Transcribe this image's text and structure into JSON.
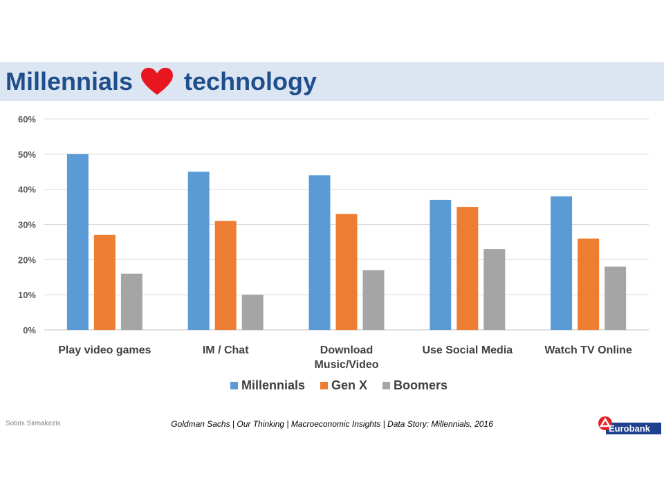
{
  "slide": {
    "title_before": "Millennials",
    "title_after": "technology",
    "heart_icon": "heart-icon",
    "author": "Sotiris Sirmakezis",
    "source": "Goldman Sachs | Our Thinking | Macroeconomic Insights | Data Story: Millennials, 2016",
    "logo_text": "Eurobank"
  },
  "colors": {
    "title_band": "#dce6f2",
    "title_text": "#1f4e8c",
    "heart": "#e8171f",
    "logo_mark": "#e41f26",
    "logo_band": "#1f3f8f"
  },
  "chart_data": {
    "type": "bar",
    "categories": [
      "Play video games",
      "IM / Chat",
      "Download Music/Video",
      "Use Social Media",
      "Watch TV Online"
    ],
    "category_lines": [
      [
        "Play video games"
      ],
      [
        "IM / Chat"
      ],
      [
        "Download",
        "Music/Video"
      ],
      [
        "Use Social Media"
      ],
      [
        "Watch TV Online"
      ]
    ],
    "series": [
      {
        "name": "Millennials",
        "color": "#5b9bd5",
        "values": [
          50,
          45,
          44,
          37,
          38
        ]
      },
      {
        "name": "Gen X",
        "color": "#ed7d31",
        "values": [
          27,
          31,
          33,
          35,
          26
        ]
      },
      {
        "name": "Boomers",
        "color": "#a5a5a5",
        "values": [
          16,
          10,
          17,
          23,
          18
        ]
      }
    ],
    "y_ticks": [
      "0%",
      "10%",
      "20%",
      "30%",
      "40%",
      "50%",
      "60%"
    ],
    "y_tick_values": [
      0,
      10,
      20,
      30,
      40,
      50,
      60
    ],
    "ylim": [
      0,
      60
    ],
    "unit": "%",
    "grid": true,
    "legend_position": "bottom"
  }
}
